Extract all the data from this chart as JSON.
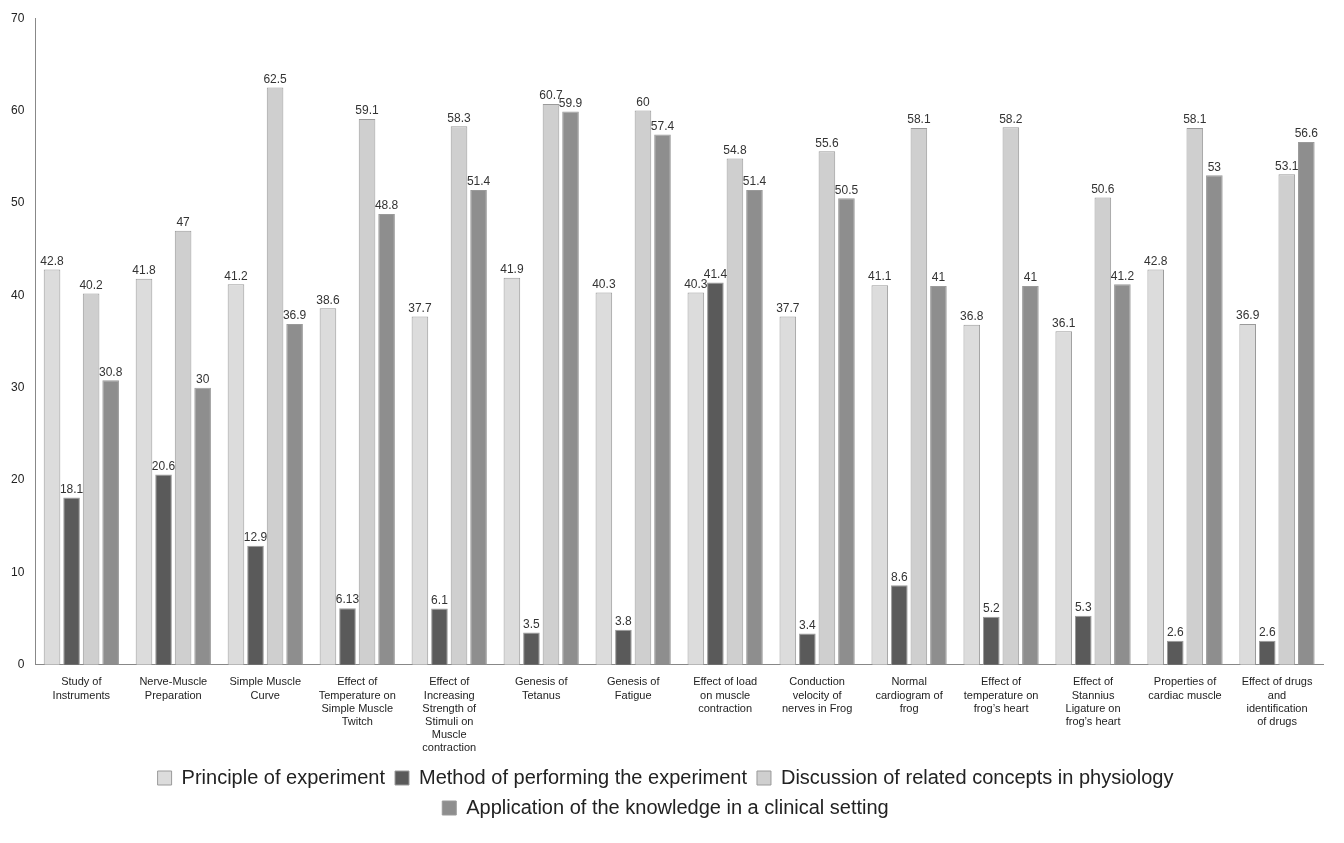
{
  "chart_data": {
    "type": "bar",
    "categories": [
      "Study of Instruments",
      "Nerve-Muscle Preparation",
      "Simple Muscle Curve",
      "Effect of Temperature on Simple Muscle Twitch",
      "Effect of Increasing Strength of Stimuli on Muscle contraction",
      "Genesis of Tetanus",
      "Genesis of Fatigue",
      "Effect of load on muscle contraction",
      "Conduction velocity of nerves in Frog",
      "Normal cardiogram of frog",
      "Effect of temperature on frog’s heart",
      "Effect of Stannius Ligature on frog’s heart",
      "Properties of cardiac muscle",
      "Effect of drugs and identification of drugs"
    ],
    "series": [
      {
        "name": "Principle of experiment",
        "color": "#dcdcdc",
        "values": [
          42.8,
          41.8,
          41.2,
          38.6,
          37.7,
          41.9,
          40.3,
          40.3,
          37.7,
          41.1,
          36.8,
          36.1,
          42.8,
          36.9
        ]
      },
      {
        "name": "Method of performing the experiment",
        "color": "#5a5a5a",
        "values": [
          18.1,
          20.6,
          12.9,
          6.13,
          6.1,
          3.5,
          3.8,
          41.4,
          3.4,
          8.6,
          5.2,
          5.3,
          2.6,
          2.6
        ]
      },
      {
        "name": "Discussion of related concepts in physiology",
        "color": "#cfcfcf",
        "values": [
          40.2,
          47,
          62.5,
          59.1,
          58.3,
          60.7,
          60,
          54.8,
          55.6,
          58.1,
          58.2,
          50.6,
          58.1,
          53.1
        ]
      },
      {
        "name": "Application of the knowledge in a clinical setting",
        "color": "#8e8e8e",
        "values": [
          30.8,
          30,
          36.9,
          48.8,
          51.4,
          59.9,
          57.4,
          51.4,
          50.5,
          41,
          41,
          41.2,
          53,
          56.6
        ]
      }
    ],
    "ylim": [
      0,
      70
    ],
    "yticks": [
      0,
      10,
      20,
      30,
      40,
      50,
      60,
      70
    ],
    "grid": false,
    "legend": "bottom",
    "data_labels": true
  }
}
